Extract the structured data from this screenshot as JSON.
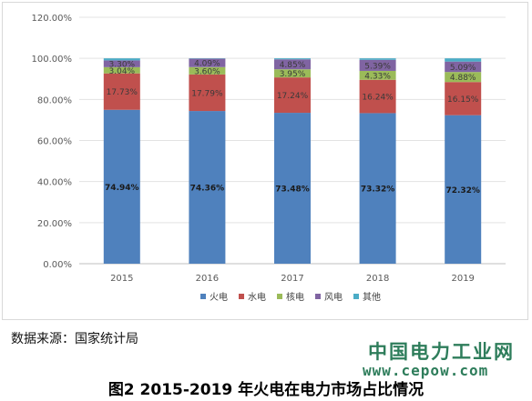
{
  "chart_data": {
    "type": "bar",
    "stacked": true,
    "categories": [
      "2015",
      "2016",
      "2017",
      "2018",
      "2019"
    ],
    "series": [
      {
        "name": "火电",
        "color": "#4f81bd",
        "values": [
          74.94,
          74.36,
          73.48,
          73.32,
          72.32
        ],
        "labels": [
          "74.94%",
          "74.36%",
          "73.48%",
          "73.32%",
          "72.32%"
        ]
      },
      {
        "name": "水电",
        "color": "#c0504d",
        "values": [
          17.73,
          17.79,
          17.24,
          16.24,
          16.15
        ],
        "labels": [
          "17.73%",
          "17.79%",
          "17.24%",
          "16.24%",
          "16.15%"
        ]
      },
      {
        "name": "核电",
        "color": "#9bbb59",
        "values": [
          3.04,
          3.6,
          3.95,
          4.33,
          4.88
        ],
        "labels": [
          "3.04%",
          "3.60%",
          "3.95%",
          "4.33%",
          "4.88%"
        ]
      },
      {
        "name": "风电",
        "color": "#8064a2",
        "values": [
          3.3,
          4.09,
          4.85,
          5.39,
          5.09
        ],
        "labels": [
          "3.30%",
          "4.09%",
          "4.85%",
          "5.39%",
          "5.09%"
        ]
      },
      {
        "name": "其他",
        "color": "#4bacc6",
        "values": [
          0.99,
          0.16,
          0.48,
          0.72,
          1.56
        ],
        "labels": [
          "",
          "",
          "",
          "",
          ""
        ]
      }
    ],
    "yticks": [
      "0.00%",
      "20.00%",
      "40.00%",
      "60.00%",
      "80.00%",
      "100.00%",
      "120.00%"
    ],
    "ylim": [
      0,
      120
    ],
    "grid": true,
    "legend_position": "bottom"
  },
  "source_note": "数据来源：国家统计局",
  "watermark": {
    "name": "中国电力工业网",
    "url": "www.cepow.com"
  },
  "caption": "图2 2015-2019 年火电在电力市场占比情况"
}
